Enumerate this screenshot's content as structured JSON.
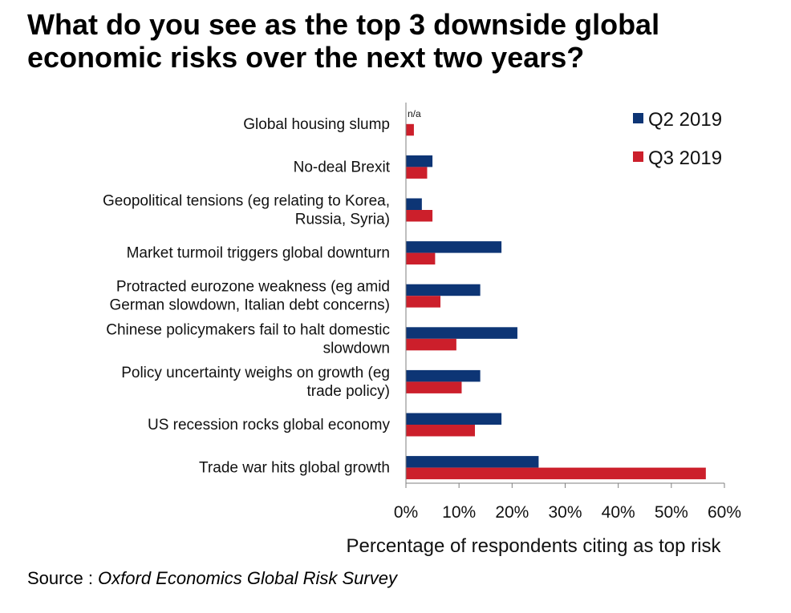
{
  "title_lines": [
    "What do you see as the top 3 downside global",
    "economic risks over the next two years?"
  ],
  "source": {
    "prefix": "Source : ",
    "name": "Oxford Economics Global Risk Survey"
  },
  "chart_data": {
    "type": "bar",
    "orientation": "horizontal",
    "title": "What do you see as the top 3 downside global economic risks over the next two years?",
    "xlabel": "Percentage of respondents citing as top risk",
    "ylabel": "",
    "xlim": [
      0,
      60
    ],
    "xticks": [
      0,
      10,
      20,
      30,
      40,
      50,
      60
    ],
    "xtick_labels": [
      "0%",
      "10%",
      "20%",
      "30%",
      "40%",
      "50%",
      "60%"
    ],
    "legend_position": "top-right",
    "categories": [
      [
        "Global housing slump"
      ],
      [
        "No-deal Brexit"
      ],
      [
        "Geopolitical tensions (eg relating to Korea,",
        "Russia, Syria)"
      ],
      [
        "Market turmoil triggers global downturn"
      ],
      [
        "Protracted eurozone weakness (eg amid",
        "German slowdown, Italian debt concerns)"
      ],
      [
        "Chinese policymakers fail to halt domestic",
        "slowdown"
      ],
      [
        "Policy uncertainty weighs on growth (eg",
        "trade policy)"
      ],
      [
        "US recession rocks global economy"
      ],
      [
        "Trade war hits global growth"
      ]
    ],
    "series": [
      {
        "name": "Q2 2019",
        "color": "#0d3575",
        "values": [
          null,
          5,
          3,
          18,
          14,
          21,
          14,
          18,
          25
        ]
      },
      {
        "name": "Q3 2019",
        "color": "#cc1f2b",
        "values": [
          1.5,
          4,
          5,
          5.5,
          6.5,
          9.5,
          10.5,
          13,
          56.5
        ]
      }
    ],
    "annotations": [
      {
        "text": "n/a",
        "category": "Global housing slump",
        "series": "Q2 2019"
      }
    ]
  }
}
